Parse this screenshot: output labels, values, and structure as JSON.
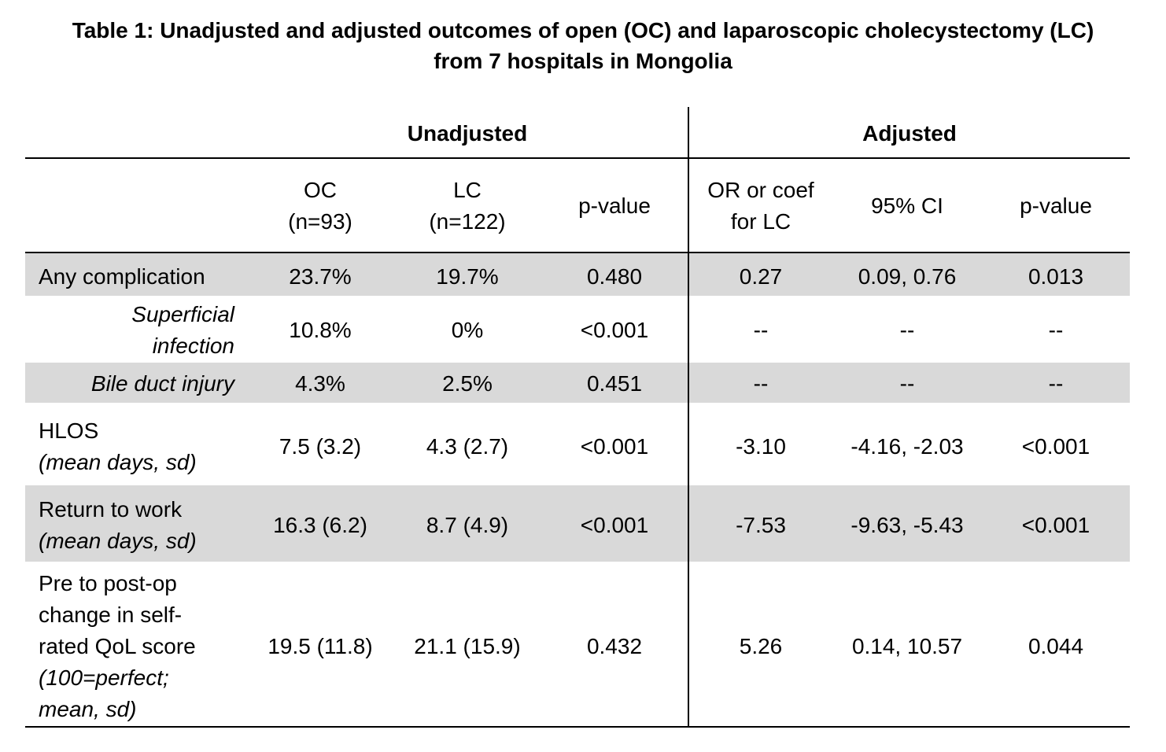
{
  "title": {
    "line1": "Table 1: Unadjusted and adjusted outcomes of open (OC) and laparoscopic cholecystectomy (LC)",
    "line2": "from 7 hospitals in Mongolia"
  },
  "groups": {
    "unadjusted": "Unadjusted",
    "adjusted": "Adjusted"
  },
  "columns": {
    "oc": {
      "line1": "OC",
      "line2": "(n=93)"
    },
    "lc": {
      "line1": "LC",
      "line2": "(n=122)"
    },
    "p1": "p-value",
    "or": {
      "line1": "OR or coef",
      "line2": "for LC"
    },
    "ci": "95% CI",
    "p2": "p-value"
  },
  "rows": [
    {
      "label": [
        "Any complication"
      ],
      "values": [
        "23.7%",
        "19.7%",
        "0.480",
        "0.27",
        "0.09, 0.76",
        "0.013"
      ]
    },
    {
      "label": [
        "Superficial",
        "infection"
      ],
      "values": [
        "10.8%",
        "0%",
        "<0.001",
        "--",
        "--",
        "--"
      ]
    },
    {
      "label": [
        "Bile duct injury"
      ],
      "values": [
        "4.3%",
        "2.5%",
        "0.451",
        "--",
        "--",
        "--"
      ]
    },
    {
      "label": [
        "HLOS",
        "(mean days, sd)"
      ],
      "values": [
        "7.5 (3.2)",
        "4.3 (2.7)",
        "<0.001",
        "-3.10",
        "-4.16, -2.03",
        "<0.001"
      ]
    },
    {
      "label": [
        "Return to work",
        "(mean days, sd)"
      ],
      "values": [
        "16.3 (6.2)",
        "8.7 (4.9)",
        "<0.001",
        "-7.53",
        "-9.63, -5.43",
        "<0.001"
      ]
    },
    {
      "label": [
        "Pre to post-op",
        "change in self-",
        "rated QoL score",
        "(100=perfect;",
        "mean, sd)"
      ],
      "values": [
        "19.5 (11.8)",
        "21.1 (15.9)",
        "0.432",
        "5.26",
        "0.14, 10.57",
        "0.044"
      ]
    }
  ]
}
